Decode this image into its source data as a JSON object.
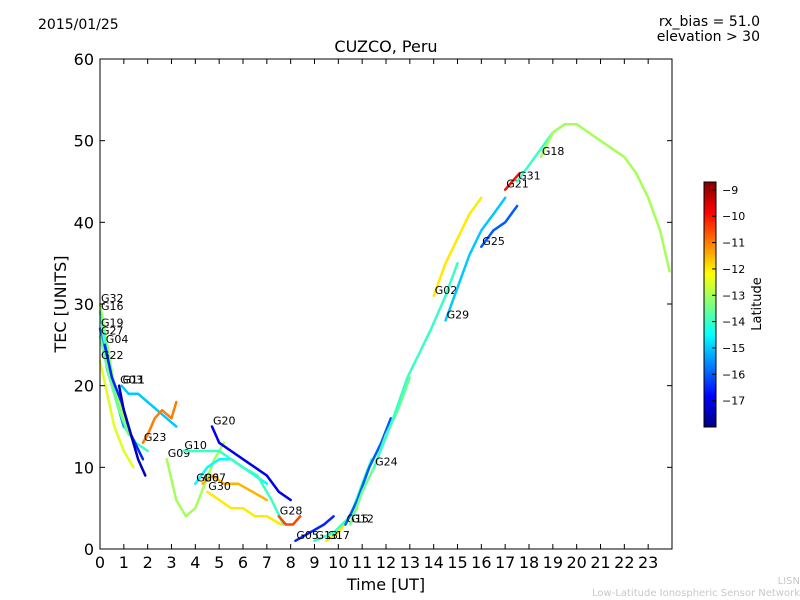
{
  "header": {
    "date": "2015/01/25",
    "rx_bias": "rx_bias = 51.0",
    "elevation": "elevation > 30"
  },
  "footer": {
    "org_short": "LISN",
    "org_long": "Low-Latitude Ionospheric Sensor Network"
  },
  "chart_data": {
    "type": "scatter",
    "title": "CUZCO, Peru",
    "xlabel": "Time [UT]",
    "ylabel": "TEC [UNITS]",
    "xlim": [
      0,
      24
    ],
    "ylim": [
      0,
      60
    ],
    "x_ticks": [
      "0",
      "1",
      "2",
      "3",
      "4",
      "5",
      "6",
      "7",
      "8",
      "9",
      "10",
      "11",
      "12",
      "13",
      "14",
      "15",
      "16",
      "17",
      "18",
      "19",
      "20",
      "21",
      "22",
      "23"
    ],
    "y_ticks": [
      "0",
      "10",
      "20",
      "30",
      "40",
      "50",
      "60"
    ],
    "colorbar": {
      "label": "Latitude",
      "range": [
        -18,
        -8.7
      ],
      "ticks": [
        "−9",
        "−10",
        "−11",
        "−12",
        "−13",
        "−14",
        "−15",
        "−16",
        "−17"
      ],
      "colormap": "jet",
      "colors": [
        "#00007f",
        "#0000ff",
        "#007fff",
        "#00ffff",
        "#7fff7f",
        "#ffff00",
        "#ff7f00",
        "#ff0000",
        "#7f0000"
      ]
    },
    "series": [
      {
        "name": "G32",
        "lat": -13,
        "x": [
          0.0,
          0.3,
          0.6,
          1.0,
          1.4
        ],
        "y": [
          30,
          25,
          20,
          16,
          13
        ]
      },
      {
        "name": "G16",
        "lat": -14,
        "x": [
          0.0,
          0.3,
          0.6,
          1.0,
          1.5,
          2.0
        ],
        "y": [
          29,
          24,
          19,
          15,
          13,
          12
        ]
      },
      {
        "name": "G19",
        "lat": -15.5,
        "x": [
          0.0,
          0.3,
          0.7,
          1.0
        ],
        "y": [
          27,
          22,
          18,
          15
        ]
      },
      {
        "name": "G27",
        "lat": -13.5,
        "x": [
          0.0,
          0.4,
          0.8,
          1.2
        ],
        "y": [
          26,
          21,
          17,
          14
        ]
      },
      {
        "name": "G04",
        "lat": -16.5,
        "x": [
          0.2,
          0.5,
          0.9,
          1.3,
          1.8
        ],
        "y": [
          25,
          21,
          18,
          14,
          11
        ]
      },
      {
        "name": "G22",
        "lat": -12.5,
        "x": [
          0.0,
          0.3,
          0.6,
          1.0,
          1.4
        ],
        "y": [
          23,
          19,
          15,
          12,
          10
        ]
      },
      {
        "name": "G03",
        "lat": -17.5,
        "x": [
          0.8,
          1.0,
          1.3,
          1.6,
          1.9
        ],
        "y": [
          20,
          17,
          14,
          11,
          9
        ]
      },
      {
        "name": "G11",
        "lat": -15,
        "x": [
          0.9,
          1.2,
          1.6,
          2.0,
          2.4,
          2.8,
          3.2
        ],
        "y": [
          20,
          19,
          19,
          18,
          17,
          16,
          15
        ]
      },
      {
        "name": "G23",
        "lat": -11,
        "x": [
          1.8,
          2.0,
          2.3,
          2.6,
          3.0,
          3.2
        ],
        "y": [
          13,
          14,
          16,
          17,
          16,
          18
        ]
      },
      {
        "name": "G09",
        "lat": -13,
        "x": [
          2.8,
          3.2,
          3.6,
          4.0,
          4.4,
          4.8,
          5.2
        ],
        "y": [
          11,
          6,
          4,
          5,
          8,
          11,
          13
        ]
      },
      {
        "name": "G20",
        "lat": -17,
        "x": [
          4.7,
          5.0,
          5.5,
          6.0,
          6.5,
          7.0,
          7.5,
          8.0
        ],
        "y": [
          15,
          13,
          12,
          11,
          10,
          9,
          7,
          6
        ]
      },
      {
        "name": "G07",
        "lat": -11.5,
        "x": [
          4.3,
          4.7,
          5.2,
          5.8,
          6.4,
          7.0
        ],
        "y": [
          8,
          9,
          8,
          8,
          7,
          6
        ]
      },
      {
        "name": "G06",
        "lat": -14.5,
        "x": [
          4.0,
          4.5,
          5.0,
          5.5,
          6.0,
          6.5,
          7.0
        ],
        "y": [
          8,
          10,
          11,
          11,
          10,
          9,
          8
        ]
      },
      {
        "name": "G10",
        "lat": -14,
        "x": [
          3.5,
          4.0,
          4.5,
          5.0,
          5.5,
          6.0,
          6.6,
          7.2,
          7.7
        ],
        "y": [
          12,
          12,
          12,
          12,
          11,
          10,
          9,
          6,
          3
        ]
      },
      {
        "name": "G30",
        "lat": -12,
        "x": [
          4.5,
          5.0,
          5.5,
          6.0,
          6.5,
          7.0,
          7.6
        ],
        "y": [
          7,
          6,
          5,
          5,
          4,
          4,
          3
        ]
      },
      {
        "name": "G28",
        "lat": -10.5,
        "x": [
          7.5,
          7.8,
          8.1,
          8.4
        ],
        "y": [
          4,
          3,
          3,
          4
        ]
      },
      {
        "name": "G05",
        "lat": -16.5,
        "x": [
          8.2,
          8.8,
          9.4,
          9.8
        ],
        "y": [
          1,
          2,
          3,
          4
        ]
      },
      {
        "name": "G17",
        "lat": -12,
        "x": [
          9.5,
          10.0,
          10.5,
          10.8
        ],
        "y": [
          1,
          2,
          4,
          5
        ]
      },
      {
        "name": "G13",
        "lat": -14,
        "x": [
          9.0,
          9.8,
          10.5,
          11.0,
          11.4
        ],
        "y": [
          1,
          2,
          4,
          8,
          11
        ]
      },
      {
        "name": "G15",
        "lat": -16,
        "x": [
          10.3,
          10.8,
          11.3,
          11.8,
          12.2
        ],
        "y": [
          3,
          6,
          10,
          13,
          16
        ]
      },
      {
        "name": "G12",
        "lat": -13.5,
        "x": [
          10.5,
          11.0,
          11.5,
          12.0,
          12.5,
          13.0
        ],
        "y": [
          3,
          7,
          10,
          14,
          17,
          21
        ]
      },
      {
        "name": "G24",
        "lat": -14,
        "x": [
          11.5,
          12.3,
          12.9,
          13.4,
          13.9,
          14.5,
          15.0
        ],
        "y": [
          10,
          16,
          21,
          24,
          27,
          31,
          35
        ]
      },
      {
        "name": "G02",
        "lat": -12,
        "x": [
          14.0,
          14.5,
          15.0,
          15.5,
          16.0
        ],
        "y": [
          31,
          35,
          38,
          41,
          43
        ]
      },
      {
        "name": "G29",
        "lat": -15,
        "x": [
          14.5,
          15.0,
          15.5,
          16.0,
          16.5,
          17.0
        ],
        "y": [
          28,
          32,
          36,
          39,
          41,
          43
        ]
      },
      {
        "name": "G25",
        "lat": -16,
        "x": [
          16.0,
          16.5,
          17.0,
          17.5
        ],
        "y": [
          37,
          39,
          40,
          42
        ]
      },
      {
        "name": "G21",
        "lat": -10,
        "x": [
          17.0,
          17.3,
          17.6
        ],
        "y": [
          44,
          45,
          46
        ]
      },
      {
        "name": "G31",
        "lat": -14,
        "x": [
          17.5,
          18.0,
          18.5,
          19.0,
          19.5
        ],
        "y": [
          45,
          47,
          49,
          51,
          52
        ]
      },
      {
        "name": "G18",
        "lat": -13,
        "x": [
          18.5,
          19.0,
          19.5,
          20.0,
          20.5,
          21.0,
          21.5,
          22.0,
          22.5,
          23.0,
          23.5,
          23.9
        ],
        "y": [
          48,
          51,
          52,
          52,
          51,
          50,
          49,
          48,
          46,
          43,
          39,
          34
        ]
      }
    ]
  }
}
